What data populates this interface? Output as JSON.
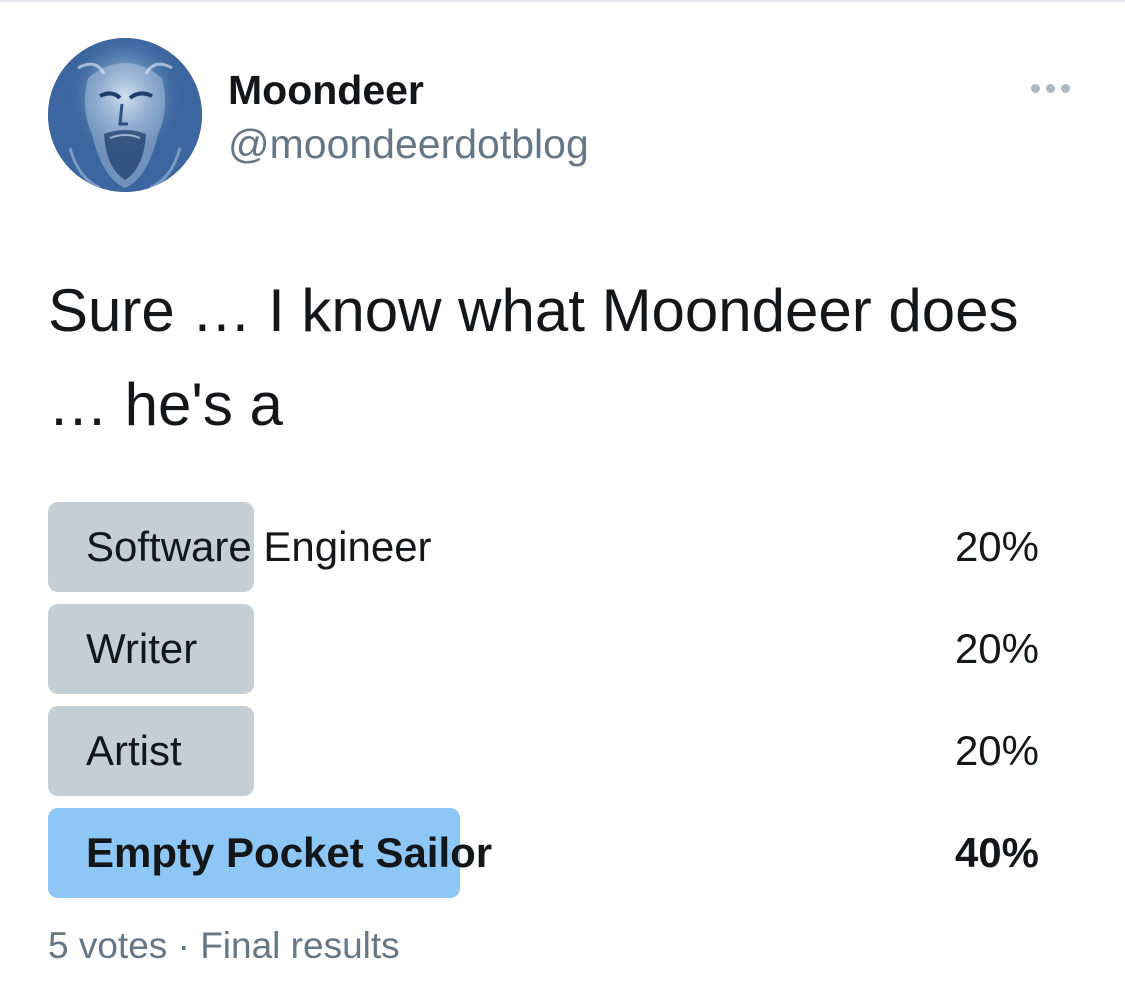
{
  "author": {
    "name": "Moondeer",
    "handle": "@moondeerdotblog",
    "avatar_icon": "bearded-portrait-avatar"
  },
  "more_icon": "more-options-icon",
  "tweet": {
    "text": "Sure … I know what Moondeer does … he's a"
  },
  "poll": {
    "options": [
      {
        "label": "Software Engineer",
        "percent_text": "20%",
        "share": 0.2,
        "winner": false
      },
      {
        "label": "Writer",
        "percent_text": "20%",
        "share": 0.2,
        "winner": false
      },
      {
        "label": "Artist",
        "percent_text": "20%",
        "share": 0.2,
        "winner": false
      },
      {
        "label": "Empty Pocket Sailor",
        "percent_text": "40%",
        "share": 0.4,
        "winner": true
      }
    ],
    "votes": "5 votes",
    "separator": "·",
    "status": "Final results"
  },
  "colors": {
    "bar_default": "#c5cdd5",
    "bar_winner": "#8ec6f5",
    "secondary_text": "#657786"
  }
}
